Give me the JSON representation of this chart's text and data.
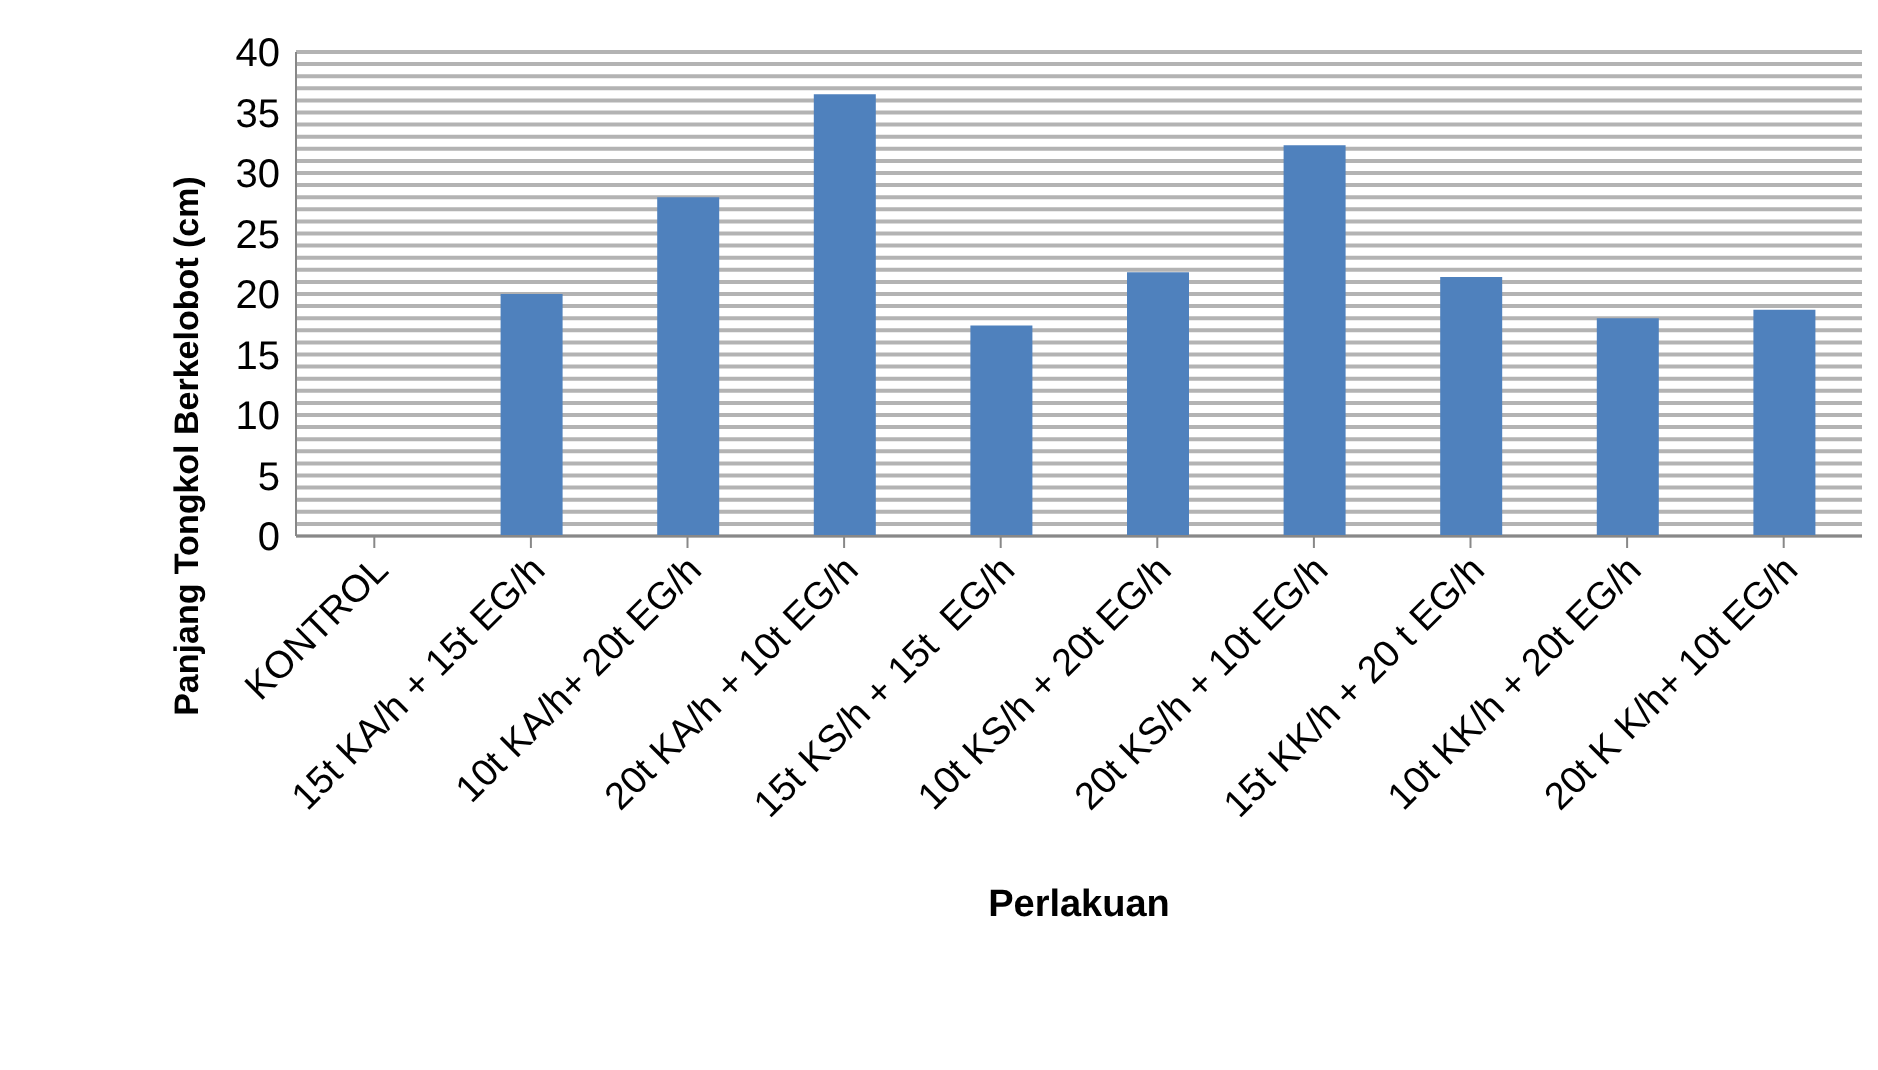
{
  "chart_data": {
    "type": "bar",
    "xlabel": "Perlakuan",
    "ylabel": "Panjang Tongkol Berkelobot (cm)",
    "categories": [
      "KONTROL",
      "15t KA/h + 15t EG/h",
      "10t KA/h+ 20t EG/h",
      "20t KA/h + 10t EG/h",
      "15t KS/h + 15t  EG/h",
      "10t KS/h + 20t EG/h",
      "20t KS/h + 10t EG/h",
      "15t KK/h + 20 t EG/h",
      "10t KK/h + 20t EG/h",
      "20t K K/h+ 10t EG/h"
    ],
    "values": [
      0,
      20,
      28,
      36.5,
      17.4,
      21.8,
      32.3,
      21.4,
      18,
      18.7
    ],
    "color": "#4f81bd",
    "ylim": [
      0,
      40
    ],
    "yticks": [
      0,
      {
        "value": 1,
        "label": null
      },
      {
        "value": 2,
        "label": null
      },
      {
        "value": 3,
        "label": null
      },
      {
        "value": 4,
        "label": null
      },
      5,
      {
        "value": 6,
        "label": null
      },
      {
        "value": 7,
        "label": null
      },
      {
        "value": 8,
        "label": null
      },
      {
        "value": 9,
        "label": null
      },
      10,
      {
        "value": 11,
        "label": null
      },
      {
        "value": 12,
        "label": null
      },
      {
        "value": 13,
        "label": null
      },
      {
        "value": 14,
        "label": null
      },
      15,
      {
        "value": 16,
        "label": null
      },
      {
        "value": 17,
        "label": null
      },
      {
        "value": 18,
        "label": null
      },
      {
        "value": 19,
        "label": null
      },
      20,
      {
        "value": 21,
        "label": null
      },
      {
        "value": 22,
        "label": null
      },
      {
        "value": 23,
        "label": null
      },
      {
        "value": 24,
        "label": null
      },
      25,
      {
        "value": 26,
        "label": null
      },
      {
        "value": 27,
        "label": null
      },
      {
        "value": 28,
        "label": null
      },
      {
        "value": 29,
        "label": null
      },
      30,
      {
        "value": 31,
        "label": null
      },
      {
        "value": 32,
        "label": null
      },
      {
        "value": 33,
        "label": null
      },
      {
        "value": 34,
        "label": null
      },
      35,
      {
        "value": 36,
        "label": null
      },
      {
        "value": 37,
        "label": null
      },
      {
        "value": 38,
        "label": null
      },
      {
        "value": 39,
        "label": null
      },
      40
    ],
    "grid": "y",
    "legend": false
  }
}
